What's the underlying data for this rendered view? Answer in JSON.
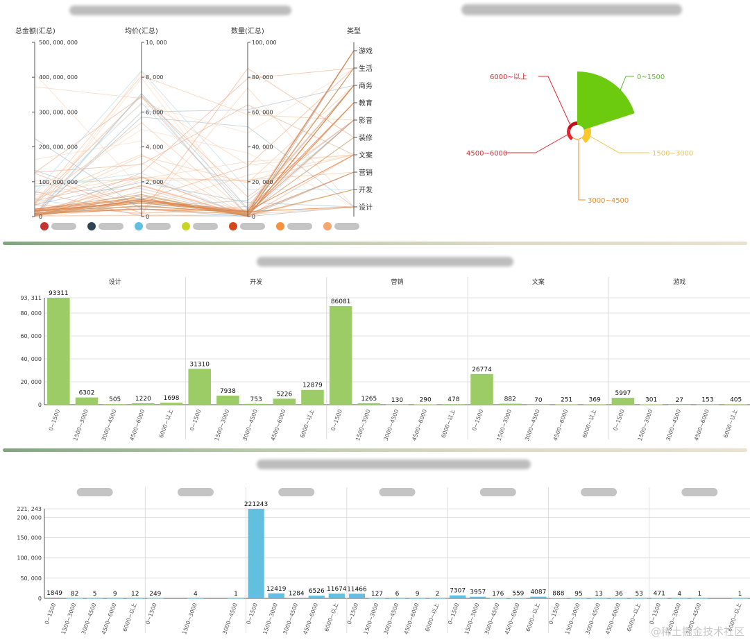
{
  "parallel": {
    "axes": [
      {
        "title": "总金额(汇总)",
        "ticks": [
          "500, 000, 000",
          "400, 000, 000",
          "300, 000, 000",
          "200, 000, 000",
          "100, 000, 000",
          "0"
        ]
      },
      {
        "title": "均价(汇总)",
        "ticks": [
          "10, 000",
          "8, 000",
          "6, 000",
          "4, 000",
          "2, 000",
          "0"
        ]
      },
      {
        "title": "数量(汇总)",
        "ticks": [
          "100, 000",
          "80, 000",
          "60, 000",
          "40, 000",
          "20, 000",
          "0"
        ]
      },
      {
        "title": "类型",
        "ticks": [
          "游戏",
          "生活",
          "商务",
          "教育",
          "影音",
          "装修",
          "文案",
          "营销",
          "开发",
          "设计"
        ]
      }
    ],
    "legend_colors": [
      "#c23531",
      "#2f4554",
      "#61c0de",
      "#c8d528",
      "#d4471d",
      "#f5923f",
      "#f7a66c"
    ]
  },
  "rose": {
    "labels": [
      {
        "text": "0~1500",
        "color": "#5dbb2f"
      },
      {
        "text": "1500~3000",
        "color": "#f5c342"
      },
      {
        "text": "3000~4500",
        "color": "#f08a1c"
      },
      {
        "text": "4500~6000",
        "color": "#e8242c"
      },
      {
        "text": "6000~以上",
        "color": "#e8242c"
      }
    ]
  },
  "chart_data": [
    {
      "type": "bar",
      "panels": [
        {
          "title": "设计",
          "categories": [
            "0~1500",
            "1500~3000",
            "3000~4500",
            "4500~6000",
            "6000~以上"
          ],
          "values": [
            93311,
            6302,
            505,
            1220,
            1698
          ]
        },
        {
          "title": "开发",
          "categories": [
            "0~1500",
            "1500~3000",
            "3000~4500",
            "4500~6000",
            "6000~以上"
          ],
          "values": [
            31310,
            7938,
            753,
            5226,
            12879
          ]
        },
        {
          "title": "营销",
          "categories": [
            "0~1500",
            "1500~3000",
            "3000~4500",
            "4500~6000",
            "6000~以上"
          ],
          "values": [
            86081,
            1265,
            130,
            290,
            478
          ]
        },
        {
          "title": "文案",
          "categories": [
            "0~1500",
            "1500~3000",
            "3000~4500",
            "4500~6000",
            "6000~以上"
          ],
          "values": [
            26774,
            882,
            70,
            251,
            369
          ]
        },
        {
          "title": "游戏",
          "categories": [
            "0~1500",
            "1500~3000",
            "3000~4500",
            "4500~6000",
            "6000~以上"
          ],
          "values": [
            5997,
            301,
            27,
            153,
            405
          ]
        }
      ],
      "ylim": [
        0,
        93311
      ],
      "yticks": [
        "93, 311",
        "80, 000",
        "60, 000",
        "40, 000",
        "20, 000",
        "0"
      ],
      "color": "#9ccc65"
    },
    {
      "type": "bar",
      "panels": [
        {
          "categories": [
            "0~1500",
            "1500~3000",
            "3000~4500",
            "4500~6000",
            "6000~以上"
          ],
          "values": [
            1849,
            82,
            5,
            9,
            12
          ]
        },
        {
          "categories": [
            "0~1500",
            "1500~3000",
            "3000~4500"
          ],
          "values": [
            249,
            4,
            1
          ]
        },
        {
          "categories": [
            "0~1500",
            "1500~3000",
            "3000~4500",
            "4500~6000",
            "6000~以上"
          ],
          "values": [
            221243,
            12419,
            1284,
            6526,
            11674
          ]
        },
        {
          "categories": [
            "0~1500",
            "1500~3000",
            "3000~4500",
            "4500~6000",
            "6000~以上"
          ],
          "values": [
            11466,
            127,
            6,
            9,
            2
          ]
        },
        {
          "categories": [
            "0~1500",
            "1500~3000",
            "3000~4500",
            "4500~6000",
            "6000~以上"
          ],
          "values": [
            7307,
            3957,
            176,
            559,
            4087
          ]
        },
        {
          "categories": [
            "0~1500",
            "1500~3000",
            "3000~4500",
            "4500~6000",
            "6000~以上"
          ],
          "values": [
            888,
            95,
            13,
            36,
            53
          ]
        },
        {
          "categories": [
            "0~1500",
            "1500~3000",
            "3000~4500",
            "6000~以上"
          ],
          "values": [
            471,
            4,
            1,
            1
          ]
        }
      ],
      "ylim": [
        0,
        221243
      ],
      "yticks": [
        "221, 243",
        "200, 000",
        "150, 000",
        "100, 000",
        "50, 000",
        "0"
      ],
      "color": "#63bfe0"
    }
  ],
  "watermark": "@稀土掘金技术社区"
}
